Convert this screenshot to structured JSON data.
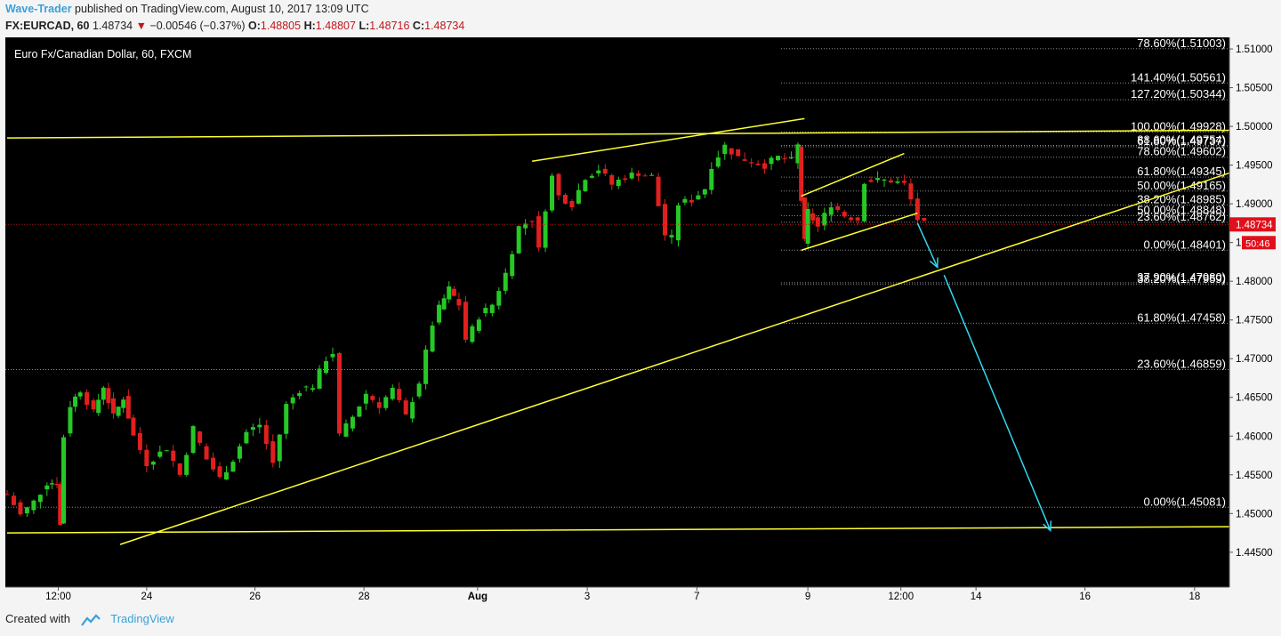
{
  "header": {
    "publisher": "Wave-Trader",
    "published_text": " published on TradingView.com, August 10, 2017 13:09 UTC",
    "symbol": "FX:EURCAD, 60",
    "last": "1.48734",
    "arrow": "▼",
    "change": "−0.00546 (−0.37%)",
    "o_label": "O:",
    "o": "1.48805",
    "h_label": "H:",
    "h": "1.48807",
    "l_label": "L:",
    "l": "1.48716",
    "c_label": "C:",
    "c": "1.48734"
  },
  "footer": {
    "created_with": "Created with",
    "brand": "TradingView"
  },
  "colors": {
    "background": "#000000",
    "up": "#26c826",
    "down": "#e0201e",
    "trendline": "#ffff33",
    "target_arrow": "#33d7f0",
    "fib_text": "#ffffff",
    "axis_text": "#000000"
  },
  "chart_data": {
    "type": "candlestick",
    "title": "Euro Fx/Canadian Dollar, 60, FXCM",
    "y_axis": {
      "ticks": [
        "1.51000",
        "1.50500",
        "1.50000",
        "1.49500",
        "1.49000",
        "1.48500",
        "1.48000",
        "1.47500",
        "1.47000",
        "1.46500",
        "1.46000",
        "1.45500",
        "1.45000",
        "1.44500"
      ],
      "range": [
        1.4405,
        1.5115
      ]
    },
    "x_axis": {
      "ticks": [
        "12:00",
        "24",
        "26",
        "28",
        "Aug",
        "3",
        "7",
        "9",
        "12:00",
        "14",
        "16",
        "18"
      ]
    },
    "last_price": {
      "value": 1.48734,
      "label": "1.48734",
      "countdown": "50:46"
    },
    "price_path": [
      [
        0,
        1.4525
      ],
      [
        2,
        1.4498
      ],
      [
        4,
        1.4515
      ],
      [
        6,
        1.454
      ],
      [
        7.5,
        1.454
      ],
      [
        8,
        1.4485
      ],
      [
        8.5,
        1.46
      ],
      [
        9.5,
        1.464
      ],
      [
        11,
        1.466
      ],
      [
        13,
        1.463
      ],
      [
        14.5,
        1.4665
      ],
      [
        16,
        1.4625
      ],
      [
        17.5,
        1.465
      ],
      [
        19,
        1.46
      ],
      [
        21,
        1.4565
      ],
      [
        24,
        1.4585
      ],
      [
        26,
        1.455
      ],
      [
        28,
        1.461
      ],
      [
        30,
        1.457
      ],
      [
        32,
        1.4545
      ],
      [
        34,
        1.457
      ],
      [
        36,
        1.4605
      ],
      [
        38,
        1.4615
      ],
      [
        40,
        1.4565
      ],
      [
        42,
        1.464
      ],
      [
        44,
        1.466
      ],
      [
        46,
        1.4665
      ],
      [
        48,
        1.47
      ],
      [
        49,
        1.4708
      ],
      [
        50,
        1.46
      ],
      [
        52,
        1.4625
      ],
      [
        54,
        1.4655
      ],
      [
        56,
        1.464
      ],
      [
        58,
        1.466
      ],
      [
        60,
        1.4625
      ],
      [
        62,
        1.467
      ],
      [
        64,
        1.4745
      ],
      [
        65,
        1.4765
      ],
      [
        66.5,
        1.479
      ],
      [
        68,
        1.477
      ],
      [
        69,
        1.4725
      ],
      [
        70,
        1.4738
      ],
      [
        71,
        1.4755
      ],
      [
        73,
        1.477
      ],
      [
        75,
        1.481
      ],
      [
        77,
        1.487
      ],
      [
        79,
        1.488
      ],
      [
        80,
        1.484
      ],
      [
        81,
        1.4895
      ],
      [
        82,
        1.4935
      ],
      [
        83,
        1.491
      ],
      [
        85,
        1.49
      ],
      [
        87,
        1.4935
      ],
      [
        89,
        1.4945
      ],
      [
        91,
        1.4925
      ],
      [
        93,
        1.4935
      ],
      [
        95,
        1.494
      ],
      [
        97,
        1.4935
      ],
      [
        99,
        1.486
      ],
      [
        100,
        1.4855
      ],
      [
        101,
        1.49
      ],
      [
        103,
        1.4905
      ],
      [
        105,
        1.492
      ],
      [
        106,
        1.495
      ],
      [
        108,
        1.4975
      ],
      [
        110,
        1.496
      ],
      [
        112,
        1.4955
      ],
      [
        114,
        1.495
      ],
      [
        116,
        1.496
      ],
      [
        118,
        1.4955
      ],
      [
        119,
        1.4975
      ],
      [
        119.5,
        1.4905
      ],
      [
        120,
        1.485
      ],
      [
        120.5,
        1.489
      ],
      [
        122,
        1.487
      ],
      [
        124,
        1.49
      ],
      [
        126,
        1.4885
      ],
      [
        128,
        1.488
      ],
      [
        129,
        1.493
      ],
      [
        131,
        1.493
      ],
      [
        133,
        1.493
      ],
      [
        135,
        1.4925
      ],
      [
        136,
        1.4905
      ],
      [
        137,
        1.488
      ],
      [
        138,
        1.48734
      ]
    ],
    "fib_levels": [
      {
        "label": "78.60%(1.51003)",
        "value": 1.51003
      },
      {
        "label": "141.40%(1.50561)",
        "value": 1.50561
      },
      {
        "label": "127.20%(1.50344)",
        "value": 1.50344
      },
      {
        "label": "100.00%(1.49928)",
        "value": 1.49928
      },
      {
        "label": "88.60%(1.49754)",
        "value": 1.49754
      },
      {
        "label": "61.80%(1.49737)",
        "value": 1.49737
      },
      {
        "label": "78.60%(1.49602)",
        "value": 1.49602
      },
      {
        "label": "61.80%(1.49345)",
        "value": 1.49345
      },
      {
        "label": "50.00%(1.49165)",
        "value": 1.49165
      },
      {
        "label": "38.20%(1.48985)",
        "value": 1.48985
      },
      {
        "label": "50.00%(1.48848)",
        "value": 1.48848
      },
      {
        "label": "23.60%(1.48762)",
        "value": 1.48762
      },
      {
        "label": "0.00%(1.48401)",
        "value": 1.48401
      },
      {
        "label": "37.90%(1.47980)",
        "value": 1.4798
      },
      {
        "label": "38.20%(1.47959)",
        "value": 1.47959
      },
      {
        "label": "61.80%(1.47458)",
        "value": 1.47458
      },
      {
        "label": "23.60%(1.46859)",
        "value": 1.46859
      },
      {
        "label": "0.00%(1.45081)",
        "value": 1.45081
      }
    ],
    "trendlines": [
      {
        "name": "upper-horizontal",
        "from": [
          0,
          1.4985
        ],
        "to": [
          184,
          1.4995
        ]
      },
      {
        "name": "lower-horizontal",
        "from": [
          0,
          1.4475
        ],
        "to": [
          184,
          1.4483
        ]
      },
      {
        "name": "rising-support",
        "from": [
          17,
          1.446
        ],
        "to": [
          184,
          1.494
        ]
      },
      {
        "name": "wedge-top",
        "from": [
          79,
          1.4955
        ],
        "to": [
          120,
          1.501
        ]
      },
      {
        "name": "channel-top",
        "from": [
          119.5,
          1.491
        ],
        "to": [
          135,
          1.4965
        ]
      },
      {
        "name": "channel-bottom",
        "from": [
          119.5,
          1.484
        ],
        "to": [
          137,
          1.4888
        ]
      }
    ],
    "projection_arrows": [
      {
        "from": [
          137,
          1.4875
        ],
        "to": [
          140,
          1.4818
        ]
      },
      {
        "from": [
          141,
          1.4808
        ],
        "to": [
          157,
          1.4478
        ]
      }
    ]
  }
}
